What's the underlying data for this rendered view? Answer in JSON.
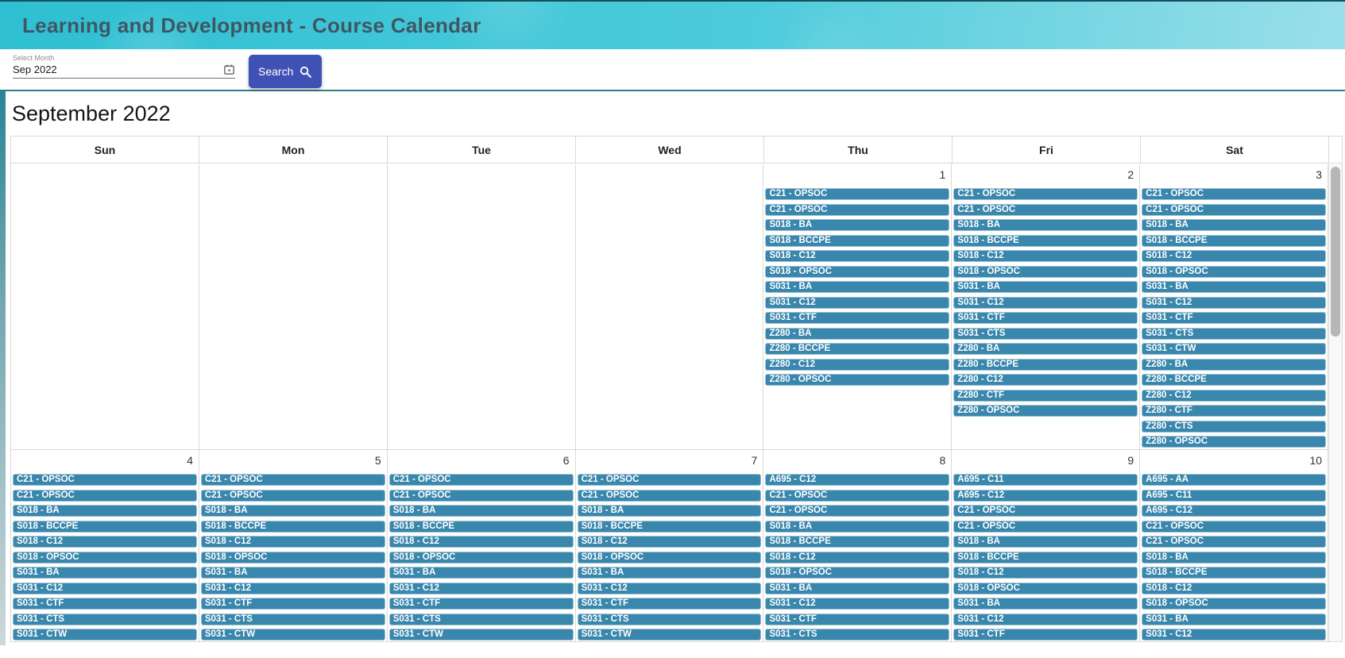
{
  "header": {
    "title": "Learning and Development - Course Calendar"
  },
  "toolbar": {
    "select_month_label": "Select Month",
    "select_month_value": "Sep 2022",
    "search_label": "Search"
  },
  "calendar": {
    "month_title": "September 2022",
    "day_headers": [
      "Sun",
      "Mon",
      "Tue",
      "Wed",
      "Thu",
      "Fri",
      "Sat"
    ],
    "weeks": [
      {
        "days": [
          {
            "number": "",
            "events": []
          },
          {
            "number": "",
            "events": []
          },
          {
            "number": "",
            "events": []
          },
          {
            "number": "",
            "events": []
          },
          {
            "number": "1",
            "events": [
              "C21 - OPSOC",
              "C21 - OPSOC",
              "S018 - BA",
              "S018 - BCCPE",
              "S018 - C12",
              "S018 - OPSOC",
              "S031 - BA",
              "S031 - C12",
              "S031 - CTF",
              "Z280 - BA",
              "Z280 - BCCPE",
              "Z280 - C12",
              "Z280 - OPSOC"
            ]
          },
          {
            "number": "2",
            "events": [
              "C21 - OPSOC",
              "C21 - OPSOC",
              "S018 - BA",
              "S018 - BCCPE",
              "S018 - C12",
              "S018 - OPSOC",
              "S031 - BA",
              "S031 - C12",
              "S031 - CTF",
              "S031 - CTS",
              "Z280 - BA",
              "Z280 - BCCPE",
              "Z280 - C12",
              "Z280 - CTF",
              "Z280 - OPSOC"
            ]
          },
          {
            "number": "3",
            "events": [
              "C21 - OPSOC",
              "C21 - OPSOC",
              "S018 - BA",
              "S018 - BCCPE",
              "S018 - C12",
              "S018 - OPSOC",
              "S031 - BA",
              "S031 - C12",
              "S031 - CTF",
              "S031 - CTS",
              "S031 - CTW",
              "Z280 - BA",
              "Z280 - BCCPE",
              "Z280 - C12",
              "Z280 - CTF",
              "Z280 - CTS",
              "Z280 - OPSOC"
            ]
          }
        ]
      },
      {
        "days": [
          {
            "number": "4",
            "events": [
              "C21 - OPSOC",
              "C21 - OPSOC",
              "S018 - BA",
              "S018 - BCCPE",
              "S018 - C12",
              "S018 - OPSOC",
              "S031 - BA",
              "S031 - C12",
              "S031 - CTF",
              "S031 - CTS",
              "S031 - CTW"
            ]
          },
          {
            "number": "5",
            "events": [
              "C21 - OPSOC",
              "C21 - OPSOC",
              "S018 - BA",
              "S018 - BCCPE",
              "S018 - C12",
              "S018 - OPSOC",
              "S031 - BA",
              "S031 - C12",
              "S031 - CTF",
              "S031 - CTS",
              "S031 - CTW"
            ]
          },
          {
            "number": "6",
            "events": [
              "C21 - OPSOC",
              "C21 - OPSOC",
              "S018 - BA",
              "S018 - BCCPE",
              "S018 - C12",
              "S018 - OPSOC",
              "S031 - BA",
              "S031 - C12",
              "S031 - CTF",
              "S031 - CTS",
              "S031 - CTW"
            ]
          },
          {
            "number": "7",
            "events": [
              "C21 - OPSOC",
              "C21 - OPSOC",
              "S018 - BA",
              "S018 - BCCPE",
              "S018 - C12",
              "S018 - OPSOC",
              "S031 - BA",
              "S031 - C12",
              "S031 - CTF",
              "S031 - CTS",
              "S031 - CTW"
            ]
          },
          {
            "number": "8",
            "events": [
              "A695 - C12",
              "C21 - OPSOC",
              "C21 - OPSOC",
              "S018 - BA",
              "S018 - BCCPE",
              "S018 - C12",
              "S018 - OPSOC",
              "S031 - BA",
              "S031 - C12",
              "S031 - CTF",
              "S031 - CTS"
            ]
          },
          {
            "number": "9",
            "events": [
              "A695 - C11",
              "A695 - C12",
              "C21 - OPSOC",
              "C21 - OPSOC",
              "S018 - BA",
              "S018 - BCCPE",
              "S018 - C12",
              "S018 - OPSOC",
              "S031 - BA",
              "S031 - C12",
              "S031 - CTF"
            ]
          },
          {
            "number": "10",
            "events": [
              "A695 - AA",
              "A695 - C11",
              "A695 - C12",
              "C21 - OPSOC",
              "C21 - OPSOC",
              "S018 - BA",
              "S018 - BCCPE",
              "S018 - C12",
              "S018 - OPSOC",
              "S031 - BA",
              "S031 - C12"
            ]
          }
        ]
      }
    ]
  },
  "colors": {
    "event_bg": "#3a87ad",
    "accent_button": "#3f51b5",
    "header_gradient_start": "#2ebfd2",
    "header_gradient_end": "#9adfe9",
    "toolbar_border": "#2f7e8c"
  }
}
